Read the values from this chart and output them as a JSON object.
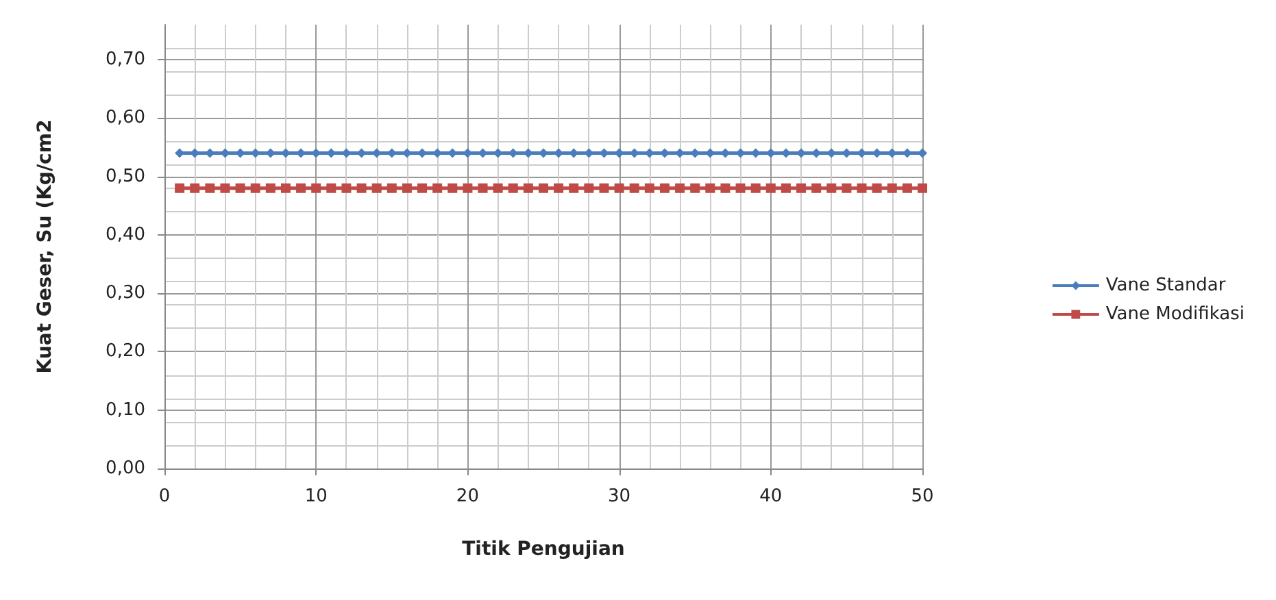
{
  "chart_data": {
    "type": "line",
    "xlabel": "Titik Pengujian",
    "ylabel": "Kuat Geser, Su (Kg/cm2",
    "x": [
      1,
      2,
      3,
      4,
      5,
      6,
      7,
      8,
      9,
      10,
      11,
      12,
      13,
      14,
      15,
      16,
      17,
      18,
      19,
      20,
      21,
      22,
      23,
      24,
      25,
      26,
      27,
      28,
      29,
      30,
      31,
      32,
      33,
      34,
      35,
      36,
      37,
      38,
      39,
      40,
      41,
      42,
      43,
      44,
      45,
      46,
      47,
      48,
      49,
      50
    ],
    "series": [
      {
        "name": "Vane Standar",
        "color": "#4a7ebb",
        "marker": "diamond",
        "values": [
          0.54,
          0.54,
          0.54,
          0.54,
          0.54,
          0.54,
          0.54,
          0.54,
          0.54,
          0.54,
          0.54,
          0.54,
          0.54,
          0.54,
          0.54,
          0.54,
          0.54,
          0.54,
          0.54,
          0.54,
          0.54,
          0.54,
          0.54,
          0.54,
          0.54,
          0.54,
          0.54,
          0.54,
          0.54,
          0.54,
          0.54,
          0.54,
          0.54,
          0.54,
          0.54,
          0.54,
          0.54,
          0.54,
          0.54,
          0.54,
          0.54,
          0.54,
          0.54,
          0.54,
          0.54,
          0.54,
          0.54,
          0.54,
          0.54,
          0.54
        ]
      },
      {
        "name": "Vane Modifikasi",
        "color": "#be4b48",
        "marker": "square",
        "values": [
          0.48,
          0.48,
          0.48,
          0.48,
          0.48,
          0.48,
          0.48,
          0.48,
          0.48,
          0.48,
          0.48,
          0.48,
          0.48,
          0.48,
          0.48,
          0.48,
          0.48,
          0.48,
          0.48,
          0.48,
          0.48,
          0.48,
          0.48,
          0.48,
          0.48,
          0.48,
          0.48,
          0.48,
          0.48,
          0.48,
          0.48,
          0.48,
          0.48,
          0.48,
          0.48,
          0.48,
          0.48,
          0.48,
          0.48,
          0.48,
          0.48,
          0.48,
          0.48,
          0.48,
          0.48,
          0.48,
          0.48,
          0.48,
          0.48,
          0.48
        ]
      }
    ],
    "xlim": [
      0,
      50
    ],
    "xticks": [
      0,
      10,
      20,
      30,
      40,
      50
    ],
    "ylim": [
      0,
      0.76
    ],
    "yticks": [
      {
        "value": 0,
        "label": "0,00"
      },
      {
        "value": 0.1,
        "label": "0,10"
      },
      {
        "value": 0.2,
        "label": "0,20"
      },
      {
        "value": 0.3,
        "label": "0,30"
      },
      {
        "value": 0.4,
        "label": "0,40"
      },
      {
        "value": 0.5,
        "label": "0,50"
      },
      {
        "value": 0.6,
        "label": "0,60"
      },
      {
        "value": 0.7,
        "label": "0,70"
      }
    ],
    "grid": true,
    "legend": "right",
    "line_style": "solid"
  }
}
